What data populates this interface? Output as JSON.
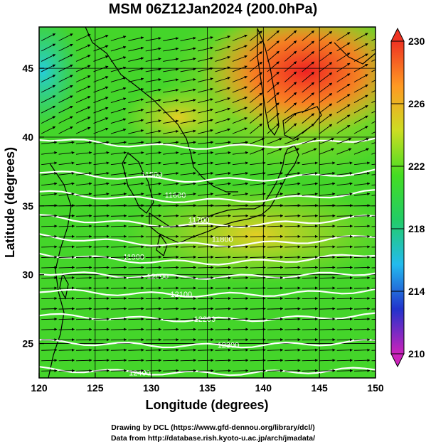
{
  "title": "MSM 06Z12Jan2024 (200.0hPa)",
  "map": {
    "xlabel": "Longitude (degrees)",
    "ylabel": "Latitude  (degrees)",
    "lon_range": [
      120,
      150
    ],
    "lat_range": [
      22.5,
      48
    ],
    "lon_ticks": [
      "120",
      "125",
      "130",
      "135",
      "140",
      "145",
      "150"
    ],
    "lat_ticks": [
      "25",
      "30",
      "35",
      "40",
      "45"
    ],
    "lon_tick_values": [
      120,
      125,
      130,
      135,
      140,
      145,
      150
    ],
    "lat_tick_values": [
      25,
      30,
      35,
      40,
      45
    ],
    "contour_levels": [
      {
        "lat": 40.0,
        "label": ""
      },
      {
        "lat": 37.6,
        "label": "11500"
      },
      {
        "lat": 36.1,
        "label": "11600"
      },
      {
        "lat": 34.3,
        "label": "11700"
      },
      {
        "lat": 32.9,
        "label": "11800"
      },
      {
        "lat": 31.6,
        "label": "11900"
      },
      {
        "lat": 30.2,
        "label": "12000"
      },
      {
        "lat": 28.9,
        "label": "12100"
      },
      {
        "lat": 27.1,
        "label": "12200"
      },
      {
        "lat": 25.2,
        "label": "12300"
      },
      {
        "lat": 23.2,
        "label": "12400"
      }
    ]
  },
  "colorbar": {
    "min": 210,
    "max": 230,
    "tick_labels": [
      "230",
      "226",
      "222",
      "218",
      "214",
      "210"
    ],
    "tick_values": [
      230,
      226,
      222,
      218,
      214,
      210
    ],
    "stops": [
      "#cc22bb",
      "#2233cc",
      "#22bbee",
      "#22cc66",
      "#44dd22",
      "#ccdd22",
      "#ff9922",
      "#ee3322"
    ]
  },
  "credits": {
    "line1": "Drawing by DCL (https://www.gfd-dennou.org/library/dcl/)",
    "line2": "Data from http://database.rish.kyoto-u.ac.jp/arch/jmadata/"
  }
}
